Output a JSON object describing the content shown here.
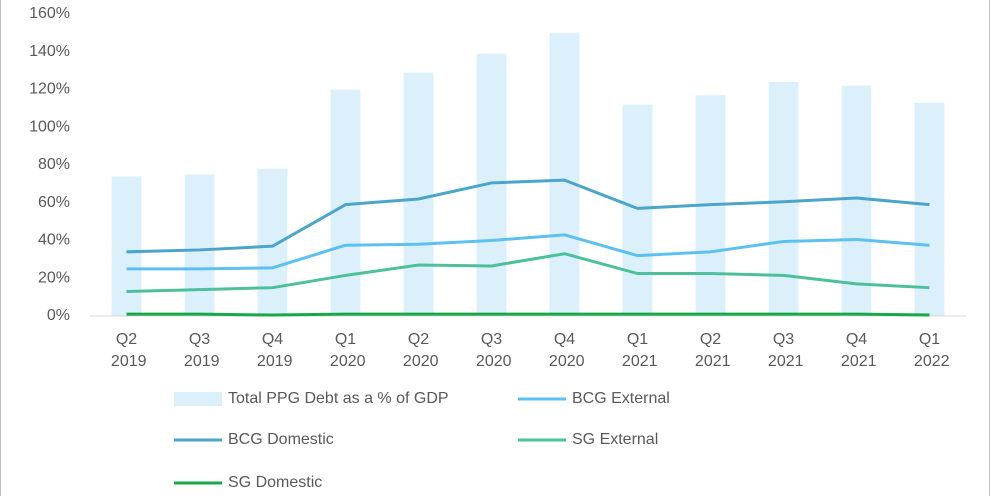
{
  "chart_data": {
    "type": "bar-line",
    "categories": [
      "Q2 2019",
      "Q3 2019",
      "Q4 2019",
      "Q1 2020",
      "Q2 2020",
      "Q3 2020",
      "Q4 2020",
      "Q1 2021",
      "Q2 2021",
      "Q3 2021",
      "Q4 2021",
      "Q1 2022"
    ],
    "series": [
      {
        "name": "Total PPG Debt as a % of GDP",
        "type": "bar",
        "color": "#dcf0fb",
        "values": [
          74,
          75,
          78,
          120,
          129,
          139,
          150,
          112,
          117,
          124,
          122,
          113
        ]
      },
      {
        "name": "BCG External",
        "type": "line",
        "color": "#5cc1f0",
        "values": [
          25,
          25,
          25.5,
          37.5,
          38,
          40,
          43,
          32,
          34,
          39.5,
          40.5,
          37.5
        ]
      },
      {
        "name": "BCG Domestic",
        "type": "line",
        "color": "#4ba4c9",
        "values": [
          34,
          35,
          37,
          59,
          62,
          70.5,
          72,
          57,
          59,
          60.5,
          62.5,
          59
        ]
      },
      {
        "name": "SG External",
        "type": "line",
        "color": "#4dc09a",
        "values": [
          13,
          14,
          15,
          21.5,
          27,
          26.5,
          33,
          22.5,
          22.5,
          21.5,
          17,
          15
        ]
      },
      {
        "name": "SG Domestic",
        "type": "line",
        "color": "#17a84a",
        "values": [
          1,
          1,
          0.5,
          1,
          1,
          1,
          1,
          1,
          1,
          1,
          1,
          0.5
        ]
      }
    ],
    "ylim": [
      0,
      160
    ],
    "yticks": [
      {
        "value": 0,
        "label": "0%"
      },
      {
        "value": 20,
        "label": "20%"
      },
      {
        "value": 40,
        "label": "40%"
      },
      {
        "value": 60,
        "label": "60%"
      },
      {
        "value": 80,
        "label": "80%"
      },
      {
        "value": 100,
        "label": "100%"
      },
      {
        "value": 120,
        "label": "120%"
      },
      {
        "value": 140,
        "label": "140%"
      },
      {
        "value": 160,
        "label": "160%"
      }
    ]
  }
}
